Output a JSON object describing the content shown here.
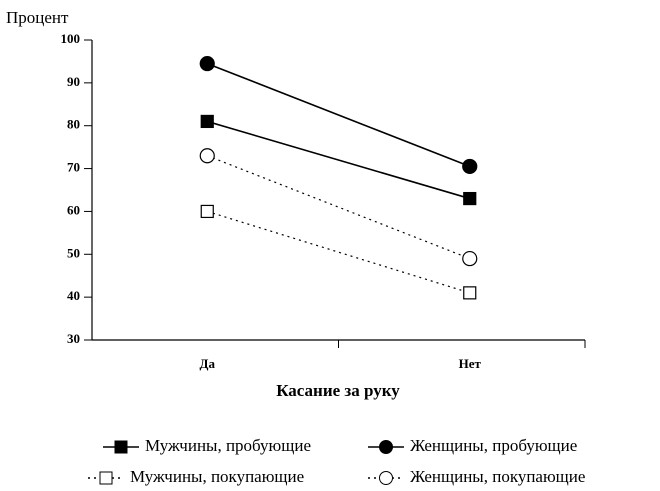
{
  "chart_data": {
    "type": "line",
    "y_label": "Процент",
    "x_label": "Касание за руку",
    "categories": [
      "Да",
      "Нет"
    ],
    "series": [
      {
        "name": "Мужчины, пробующие",
        "color": "#000000",
        "line_style": "solid",
        "marker": "square",
        "filled": true,
        "values": [
          81,
          63
        ]
      },
      {
        "name": "Женщины, пробующие",
        "color": "#000000",
        "line_style": "solid",
        "marker": "circle",
        "filled": true,
        "values": [
          94.5,
          70.5
        ]
      },
      {
        "name": "Мужчины, покупающие",
        "color": "#000000",
        "line_style": "dotted",
        "marker": "square",
        "filled": false,
        "values": [
          60,
          41
        ]
      },
      {
        "name": "Женщины, покупающие",
        "color": "#000000",
        "line_style": "dotted",
        "marker": "circle",
        "filled": false,
        "values": [
          73,
          49
        ]
      }
    ],
    "ylim": [
      30,
      100
    ],
    "yticks": [
      30,
      40,
      50,
      60,
      70,
      80,
      90,
      100
    ],
    "grid": false
  }
}
